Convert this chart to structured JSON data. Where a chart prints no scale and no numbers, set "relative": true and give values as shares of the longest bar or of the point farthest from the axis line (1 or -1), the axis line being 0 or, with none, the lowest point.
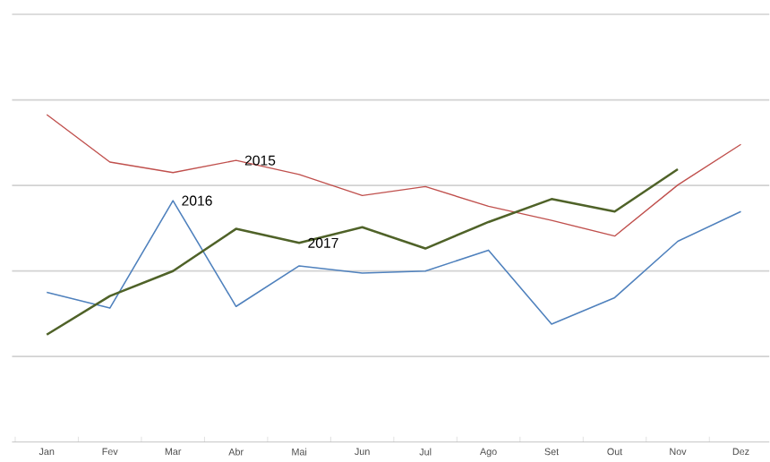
{
  "chart_data": {
    "type": "line",
    "relative": true,
    "grid": "y",
    "categories": [
      "Jan",
      "Fev",
      "Mar",
      "Abr",
      "Mai",
      "Jun",
      "Jul",
      "Ago",
      "Set",
      "Out",
      "Nov",
      "Dez"
    ],
    "series": [
      {
        "name": "2015",
        "color": "#c0504d",
        "values": [
          1.0,
          0.855,
          0.823,
          0.86,
          0.817,
          0.753,
          0.78,
          0.72,
          0.677,
          0.629,
          0.785,
          0.909
        ]
      },
      {
        "name": "2016",
        "color": "#4f81bd",
        "values": [
          0.457,
          0.409,
          0.737,
          0.414,
          0.538,
          0.516,
          0.522,
          0.586,
          0.36,
          0.441,
          0.613,
          0.704
        ]
      },
      {
        "name": "2017",
        "color": "#4f6228",
        "values": [
          0.328,
          0.446,
          0.522,
          0.651,
          0.608,
          0.656,
          0.591,
          0.672,
          0.742,
          0.704,
          0.833,
          null
        ]
      }
    ]
  }
}
